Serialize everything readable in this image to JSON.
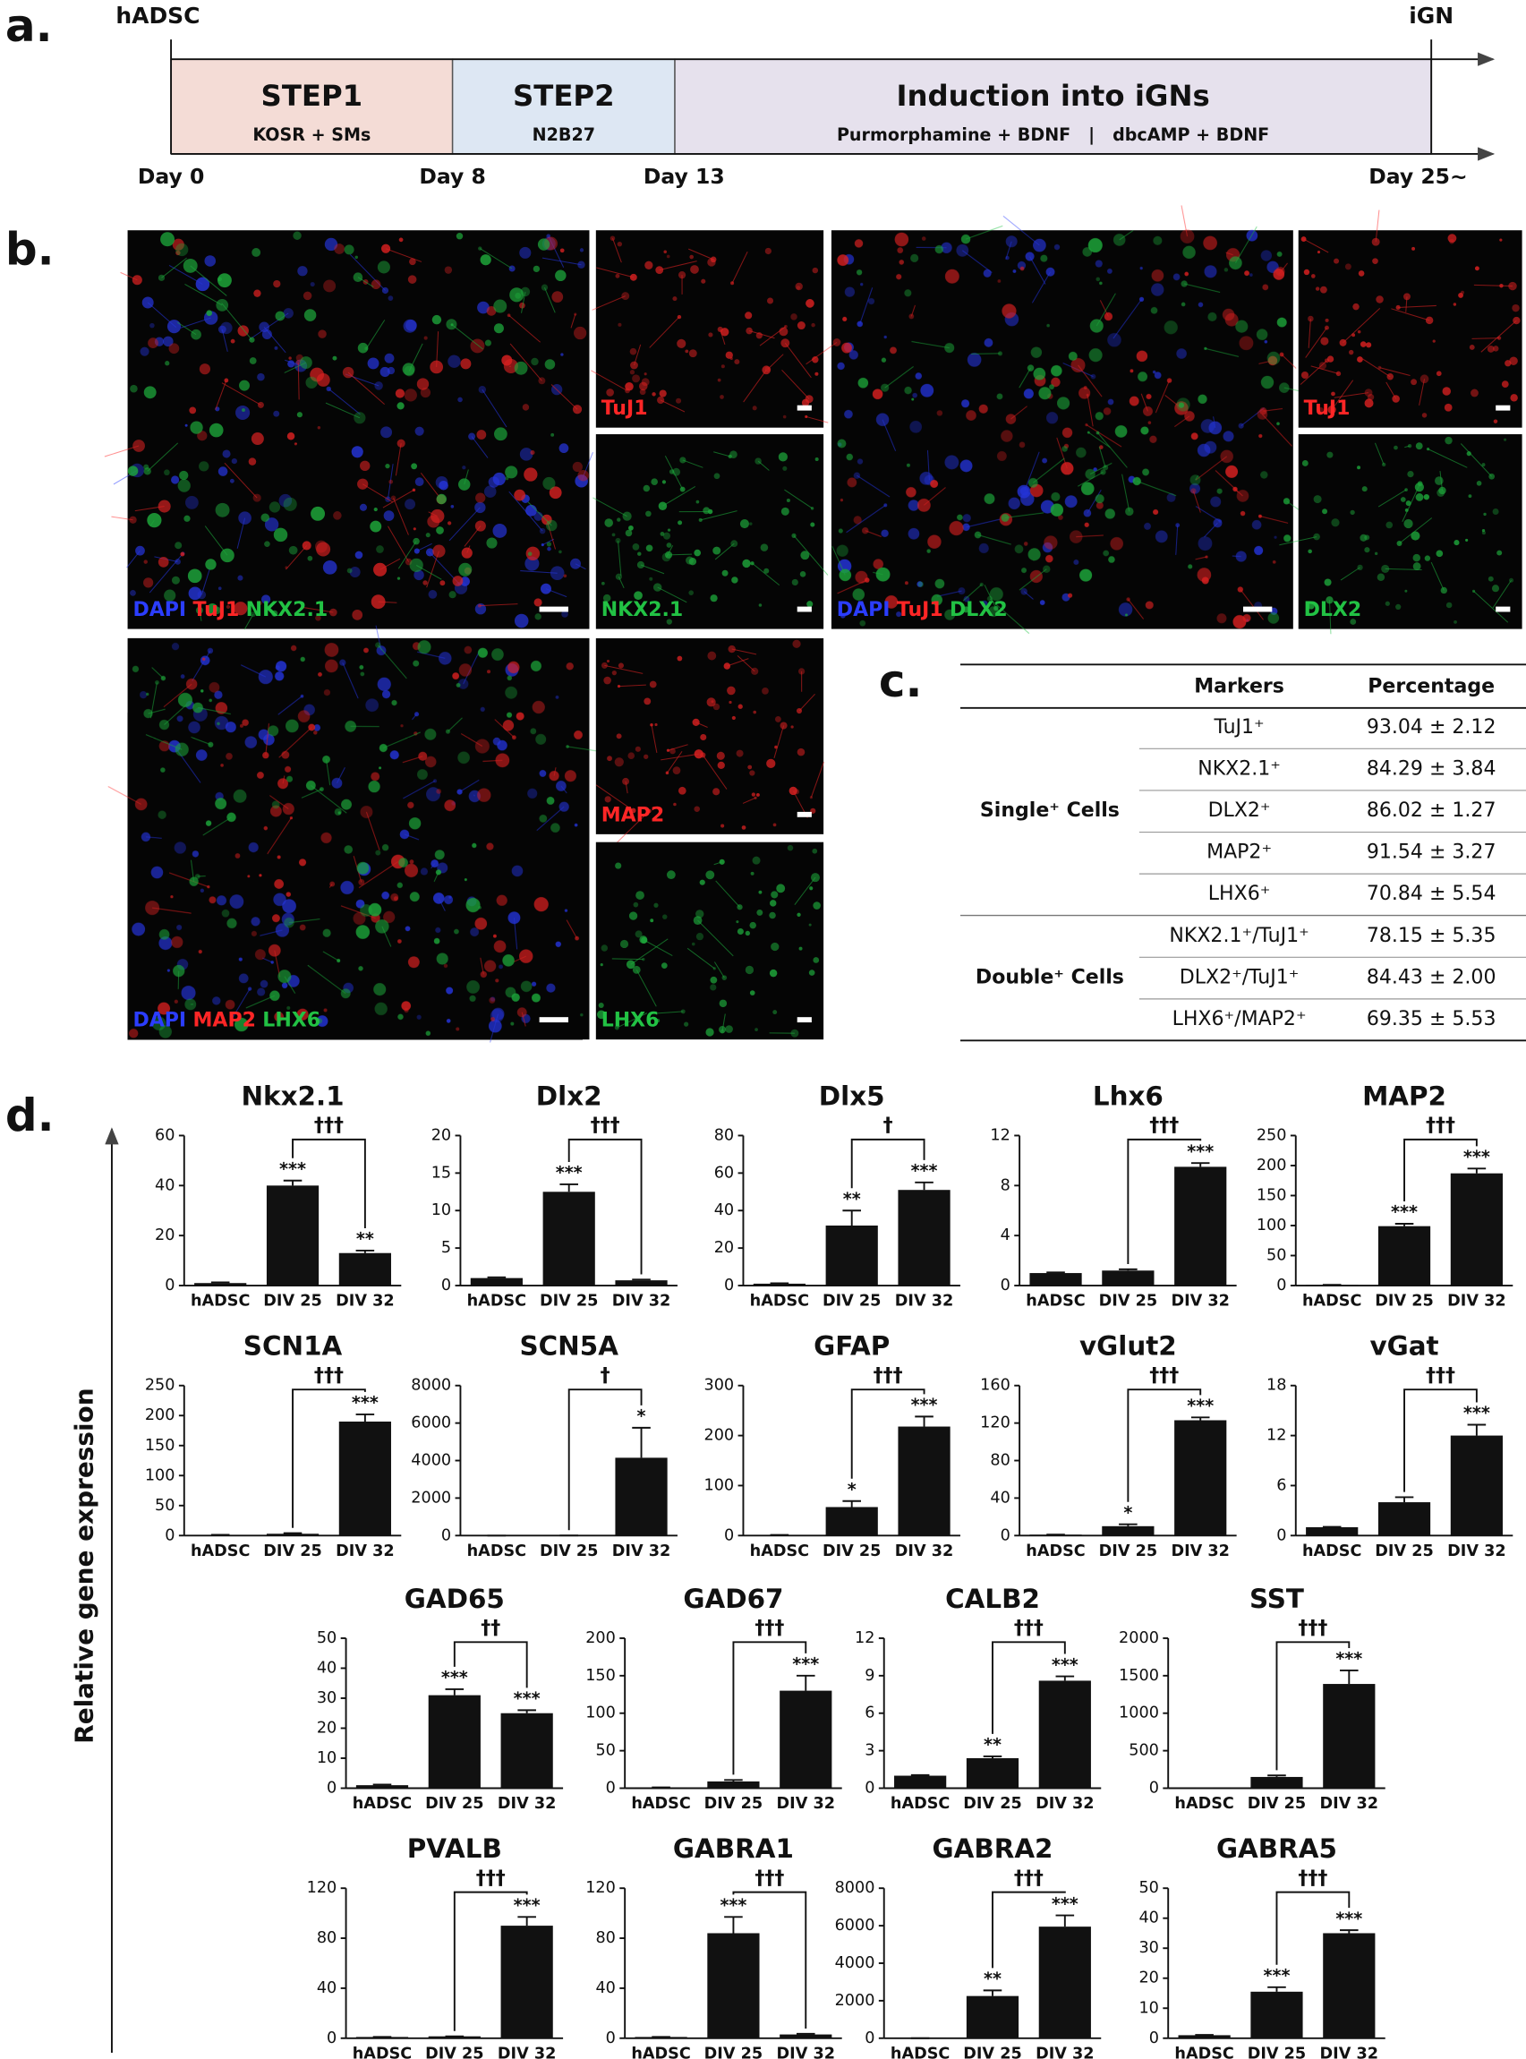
{
  "panel_a": {
    "label": "a.",
    "start": "hADSC",
    "end": "iGN",
    "steps": [
      {
        "title": "STEP1",
        "subtitle": "KOSR + SMs",
        "color": "#f4dcd6"
      },
      {
        "title": "STEP2",
        "subtitle": "N2B27",
        "color": "#dde7f3"
      },
      {
        "title": "Induction into iGNs",
        "subtitle": "Purmorphamine + BDNF   |   dbcAMP + BDNF",
        "color": "#e6e1ed"
      }
    ],
    "days": [
      "Day 0",
      "Day 8",
      "Day 13",
      "Day 25~"
    ]
  },
  "panel_b": {
    "label": "b.",
    "images": [
      {
        "labels": [
          {
            "text": "DAPI",
            "color": "#2b3dff"
          },
          {
            "text": "TuJ1",
            "color": "#ff2626"
          },
          {
            "text": "NKX2.1",
            "color": "#22c244"
          }
        ]
      },
      {
        "labels": [
          {
            "text": "TuJ1",
            "color": "#ff2626"
          }
        ]
      },
      {
        "labels": [
          {
            "text": "NKX2.1",
            "color": "#22c244"
          }
        ]
      },
      {
        "labels": [
          {
            "text": "DAPI",
            "color": "#2b3dff"
          },
          {
            "text": "TuJ1",
            "color": "#ff2626"
          },
          {
            "text": "DLX2",
            "color": "#22c244"
          }
        ]
      },
      {
        "labels": [
          {
            "text": "TuJ1",
            "color": "#ff2626"
          }
        ]
      },
      {
        "labels": [
          {
            "text": "DLX2",
            "color": "#22c244"
          }
        ]
      },
      {
        "labels": [
          {
            "text": "DAPI",
            "color": "#2b3dff"
          },
          {
            "text": "MAP2",
            "color": "#ff2626"
          },
          {
            "text": "LHX6",
            "color": "#22c244"
          }
        ]
      },
      {
        "labels": [
          {
            "text": "MAP2",
            "color": "#ff2626"
          }
        ]
      },
      {
        "labels": [
          {
            "text": "LHX6",
            "color": "#22c244"
          }
        ]
      }
    ]
  },
  "panel_c": {
    "label": "c.",
    "header": [
      "Markers",
      "Percentage"
    ],
    "groups": [
      {
        "name": "Single⁺ Cells",
        "rows": [
          [
            "TuJ1⁺",
            "93.04 ± 2.12"
          ],
          [
            "NKX2.1⁺",
            "84.29 ± 3.84"
          ],
          [
            "DLX2⁺",
            "86.02 ± 1.27"
          ],
          [
            "MAP2⁺",
            "91.54 ± 3.27"
          ],
          [
            "LHX6⁺",
            "70.84 ± 5.54"
          ]
        ]
      },
      {
        "name": "Double⁺ Cells",
        "rows": [
          [
            "NKX2.1⁺/TuJ1⁺",
            "78.15 ± 5.35"
          ],
          [
            "DLX2⁺/TuJ1⁺",
            "84.43 ± 2.00"
          ],
          [
            "LHX6⁺/MAP2⁺",
            "69.35 ± 5.53"
          ]
        ]
      }
    ]
  },
  "panel_d": {
    "label": "d.",
    "ylabel": "Relative gene expression"
  },
  "chart_data": [
    {
      "type": "bar",
      "title": "Nkx2.1",
      "categories": [
        "hADSC",
        "DIV 25",
        "DIV 32"
      ],
      "values": [
        1,
        40,
        13
      ],
      "errors": [
        0.3,
        2,
        1
      ],
      "significance": [
        null,
        "***",
        "**"
      ],
      "bracket_label": "†††",
      "ylim": [
        0,
        60
      ],
      "yticks": [
        0,
        20,
        40,
        60
      ],
      "color": "#111111"
    },
    {
      "type": "bar",
      "title": "Dlx2",
      "categories": [
        "hADSC",
        "DIV 25",
        "DIV 32"
      ],
      "values": [
        1,
        12.5,
        0.7
      ],
      "errors": [
        0.1,
        1,
        0.1
      ],
      "significance": [
        null,
        "***",
        null
      ],
      "bracket_label": "†††",
      "ylim": [
        0,
        20
      ],
      "yticks": [
        0,
        5,
        10,
        15,
        20
      ],
      "color": "#111111"
    },
    {
      "type": "bar",
      "title": "Dlx5",
      "categories": [
        "hADSC",
        "DIV 25",
        "DIV 32"
      ],
      "values": [
        1,
        32,
        51
      ],
      "errors": [
        0.2,
        8,
        4
      ],
      "significance": [
        null,
        "**",
        "***"
      ],
      "bracket_label": "†",
      "ylim": [
        0,
        80
      ],
      "yticks": [
        0,
        20,
        40,
        60,
        80
      ],
      "color": "#111111"
    },
    {
      "type": "bar",
      "title": "Lhx6",
      "categories": [
        "hADSC",
        "DIV 25",
        "DIV 32"
      ],
      "values": [
        1,
        1.2,
        9.5
      ],
      "errors": [
        0.05,
        0.1,
        0.3
      ],
      "significance": [
        null,
        null,
        "***"
      ],
      "bracket_label": "†††",
      "ylim": [
        0,
        12
      ],
      "yticks": [
        0,
        4,
        8,
        12
      ],
      "color": "#111111"
    },
    {
      "type": "bar",
      "title": "MAP2",
      "categories": [
        "hADSC",
        "DIV 25",
        "DIV 32"
      ],
      "values": [
        1,
        99,
        187
      ],
      "errors": [
        0.2,
        4,
        8
      ],
      "significance": [
        null,
        "***",
        "***"
      ],
      "bracket_label": "†††",
      "ylim": [
        0,
        250
      ],
      "yticks": [
        0,
        50,
        100,
        150,
        200,
        250
      ],
      "color": "#111111"
    },
    {
      "type": "bar",
      "title": "SCN1A",
      "categories": [
        "hADSC",
        "DIV 25",
        "DIV 32"
      ],
      "values": [
        1,
        3,
        190
      ],
      "errors": [
        0.2,
        1,
        12
      ],
      "significance": [
        null,
        null,
        "***"
      ],
      "bracket_label": "†††",
      "ylim": [
        0,
        250
      ],
      "yticks": [
        0,
        50,
        100,
        150,
        200,
        250
      ],
      "color": "#111111"
    },
    {
      "type": "bar",
      "title": "SCN5A",
      "categories": [
        "hADSC",
        "DIV 25",
        "DIV 32"
      ],
      "values": [
        1,
        5,
        4150
      ],
      "errors": [
        0,
        0,
        1600
      ],
      "significance": [
        null,
        null,
        "*"
      ],
      "bracket_label": "†",
      "ylim": [
        0,
        8000
      ],
      "yticks": [
        0,
        2000,
        4000,
        6000,
        8000
      ],
      "color": "#111111"
    },
    {
      "type": "bar",
      "title": "GFAP",
      "categories": [
        "hADSC",
        "DIV 25",
        "DIV 32"
      ],
      "values": [
        1,
        57,
        218
      ],
      "errors": [
        0.2,
        12,
        20
      ],
      "significance": [
        null,
        "*",
        "***"
      ],
      "bracket_label": "†††",
      "ylim": [
        0,
        300
      ],
      "yticks": [
        0,
        100,
        200,
        300
      ],
      "color": "#111111"
    },
    {
      "type": "bar",
      "title": "vGlut2",
      "categories": [
        "hADSC",
        "DIV 25",
        "DIV 32"
      ],
      "values": [
        1,
        10,
        123
      ],
      "errors": [
        0.1,
        2,
        3
      ],
      "significance": [
        null,
        "*",
        "***"
      ],
      "bracket_label": "†††",
      "ylim": [
        0,
        160
      ],
      "yticks": [
        0,
        40,
        80,
        120,
        160
      ],
      "color": "#111111"
    },
    {
      "type": "bar",
      "title": "vGat",
      "categories": [
        "hADSC",
        "DIV 25",
        "DIV 32"
      ],
      "values": [
        1,
        4,
        12
      ],
      "errors": [
        0.05,
        0.6,
        1.3
      ],
      "significance": [
        null,
        null,
        "***"
      ],
      "bracket_label": "†††",
      "ylim": [
        0,
        18
      ],
      "yticks": [
        0,
        6,
        12,
        18
      ],
      "color": "#111111"
    },
    {
      "type": "bar",
      "title": "GAD65",
      "categories": [
        "hADSC",
        "DIV 25",
        "DIV 32"
      ],
      "values": [
        1,
        31,
        25
      ],
      "errors": [
        0.2,
        2,
        1
      ],
      "significance": [
        null,
        "***",
        "***"
      ],
      "bracket_label": "††",
      "ylim": [
        0,
        50
      ],
      "yticks": [
        0,
        10,
        20,
        30,
        40,
        50
      ],
      "color": "#111111"
    },
    {
      "type": "bar",
      "title": "GAD67",
      "categories": [
        "hADSC",
        "DIV 25",
        "DIV 32"
      ],
      "values": [
        1,
        9,
        130
      ],
      "errors": [
        0.1,
        2,
        20
      ],
      "significance": [
        null,
        null,
        "***"
      ],
      "bracket_label": "†††",
      "ylim": [
        0,
        200
      ],
      "yticks": [
        0,
        50,
        100,
        150,
        200
      ],
      "color": "#111111"
    },
    {
      "type": "bar",
      "title": "CALB2",
      "categories": [
        "hADSC",
        "DIV 25",
        "DIV 32"
      ],
      "values": [
        1,
        2.4,
        8.6
      ],
      "errors": [
        0.05,
        0.15,
        0.35
      ],
      "significance": [
        null,
        "**",
        "***"
      ],
      "bracket_label": "†††",
      "ylim": [
        0,
        12
      ],
      "yticks": [
        0,
        3,
        6,
        9,
        12
      ],
      "color": "#111111"
    },
    {
      "type": "bar",
      "title": "SST",
      "categories": [
        "hADSC",
        "DIV 25",
        "DIV 32"
      ],
      "values": [
        1,
        150,
        1390
      ],
      "errors": [
        0,
        20,
        180
      ],
      "significance": [
        null,
        null,
        "***"
      ],
      "bracket_label": "†††",
      "ylim": [
        0,
        2000
      ],
      "yticks": [
        0,
        500,
        1000,
        1500,
        2000
      ],
      "color": "#111111"
    },
    {
      "type": "bar",
      "title": "PVALB",
      "categories": [
        "hADSC",
        "DIV 25",
        "DIV 32"
      ],
      "values": [
        1,
        1.5,
        90
      ],
      "errors": [
        0,
        0,
        7
      ],
      "significance": [
        null,
        null,
        "***"
      ],
      "bracket_label": "†††",
      "ylim": [
        0,
        120
      ],
      "yticks": [
        0,
        40,
        80,
        120
      ],
      "color": "#111111"
    },
    {
      "type": "bar",
      "title": "GABRA1",
      "categories": [
        "hADSC",
        "DIV 25",
        "DIV 32"
      ],
      "values": [
        1,
        84,
        3
      ],
      "errors": [
        0,
        13,
        0.5
      ],
      "significance": [
        null,
        "***",
        null
      ],
      "bracket_label": "†††",
      "ylim": [
        0,
        120
      ],
      "yticks": [
        0,
        40,
        80,
        120
      ],
      "color": "#111111"
    },
    {
      "type": "bar",
      "title": "GABRA2",
      "categories": [
        "hADSC",
        "DIV 25",
        "DIV 32"
      ],
      "values": [
        1,
        2250,
        5950
      ],
      "errors": [
        0,
        300,
        600
      ],
      "significance": [
        null,
        "**",
        "***"
      ],
      "bracket_label": "†††",
      "ylim": [
        0,
        8000
      ],
      "yticks": [
        0,
        2000,
        4000,
        6000,
        8000
      ],
      "color": "#111111"
    },
    {
      "type": "bar",
      "title": "GABRA5",
      "categories": [
        "hADSC",
        "DIV 25",
        "DIV 32"
      ],
      "values": [
        1,
        15.5,
        35
      ],
      "errors": [
        0.1,
        1.5,
        1
      ],
      "significance": [
        null,
        "***",
        "***"
      ],
      "bracket_label": "†††",
      "ylim": [
        0,
        50
      ],
      "yticks": [
        0,
        10,
        20,
        30,
        40,
        50
      ],
      "color": "#111111"
    }
  ]
}
